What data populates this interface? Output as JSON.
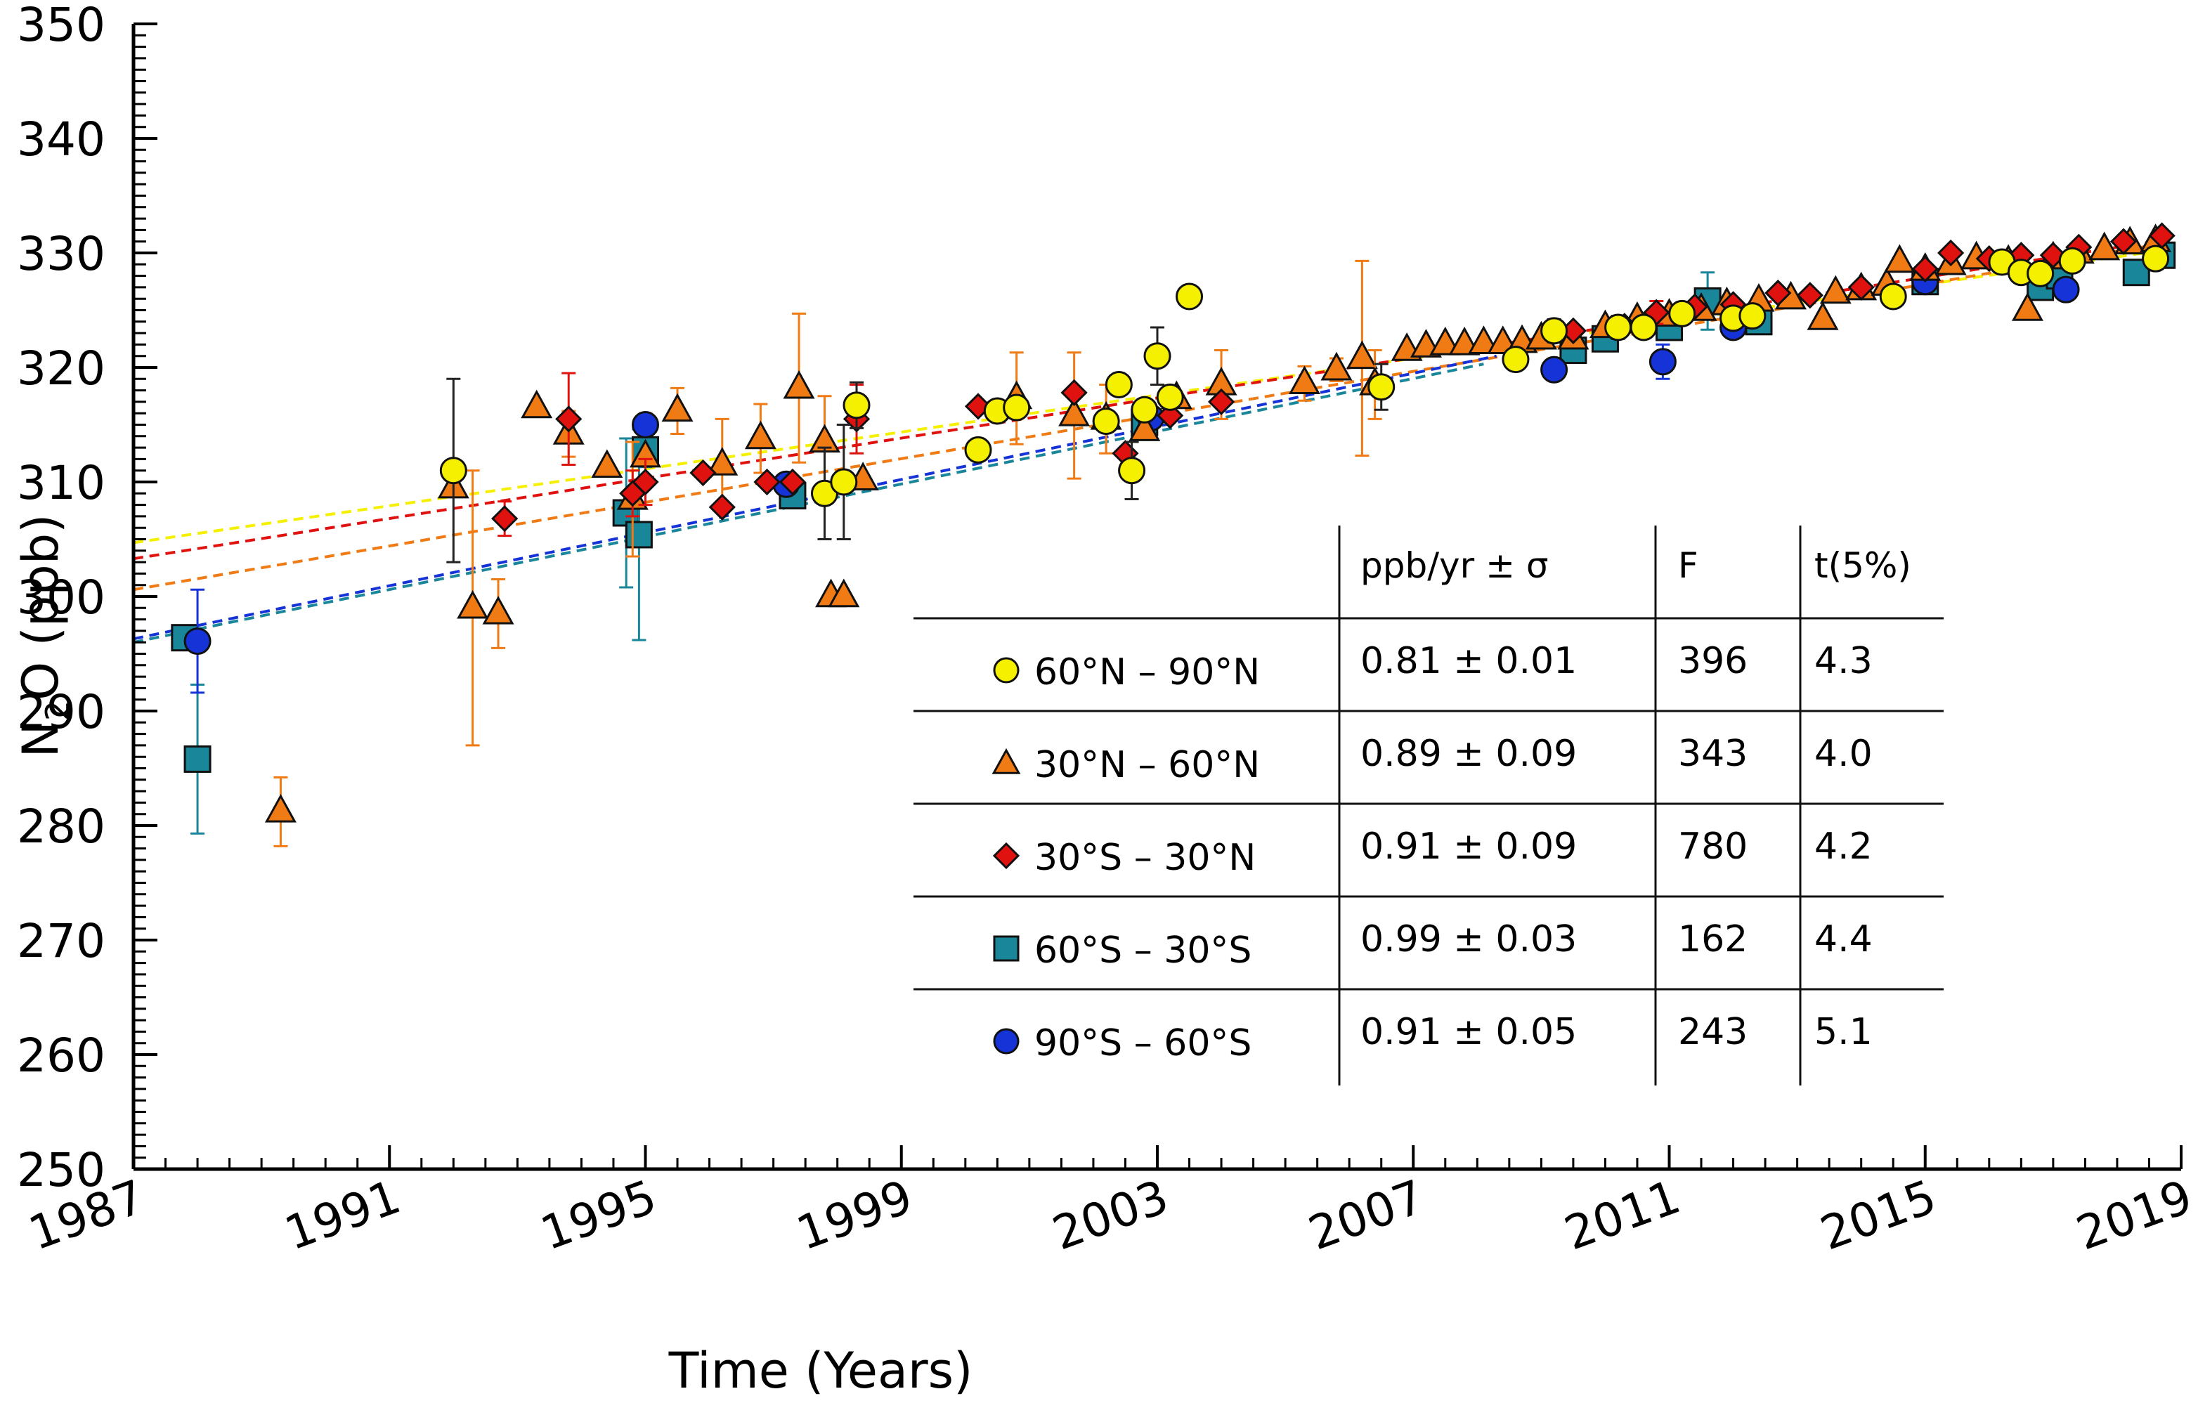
{
  "chart_data": {
    "type": "scatter",
    "xlabel": "Time (Years)",
    "ylabel_main": "N",
    "ylabel_sub": "2",
    "ylabel_rest": "O (ppb)",
    "xlim": [
      1987,
      2019
    ],
    "ylim": [
      250,
      350
    ],
    "x_ticks": [
      "1987",
      "1991",
      "1995",
      "1999",
      "2003",
      "2007",
      "2011",
      "2015",
      "2019"
    ],
    "y_ticks": [
      "250",
      "260",
      "270",
      "280",
      "290",
      "300",
      "310",
      "320",
      "330",
      "340",
      "350"
    ],
    "colors": {
      "yellow": "#f5f000",
      "orange": "#f07a14",
      "red": "#e0120f",
      "teal": "#19869a",
      "blue": "#1533d6"
    },
    "table": {
      "headers": [
        "ppb/yr  ± σ",
        "F",
        "t(5%)"
      ],
      "rows": [
        {
          "label": "60°N – 90°N",
          "rate": "0.81 ± 0.01",
          "F": "396",
          "t": "4.3",
          "marker": "circle",
          "color": "#f5f000"
        },
        {
          "label": "30°N – 60°N",
          "rate": "0.89 ± 0.09",
          "F": "343",
          "t": "4.0",
          "marker": "triangle",
          "color": "#f07a14"
        },
        {
          "label": "30°S – 30°N",
          "rate": "0.91 ± 0.09",
          "F": "780",
          "t": "4.2",
          "marker": "diamond",
          "color": "#e0120f"
        },
        {
          "label": "60°S – 30°S",
          "rate": "0.99 ± 0.03",
          "F": "162",
          "t": "4.4",
          "marker": "square",
          "color": "#19869a"
        },
        {
          "label": "90°S – 60°S",
          "rate": "0.91 ± 0.05",
          "F": "243",
          "t": "5.1",
          "marker": "circle",
          "color": "#1533d6"
        }
      ]
    },
    "series": [
      {
        "name": "60°N – 90°N",
        "marker": "circle",
        "color": "#f5f000",
        "err_color": "#222222",
        "trend": [
          [
            1987,
            304.7
          ],
          [
            2018.8,
            330.3
          ]
        ],
        "points": [
          [
            1992,
            311,
            8
          ],
          [
            1997.8,
            309,
            4
          ],
          [
            1998.1,
            310,
            5
          ],
          [
            1998.3,
            316.7,
            2
          ],
          [
            2000.2,
            312.8,
            0
          ],
          [
            2000.5,
            316.2,
            0
          ],
          [
            2000.8,
            316.5,
            0
          ],
          [
            2002.2,
            315.3,
            0
          ],
          [
            2002.4,
            318.5,
            0
          ],
          [
            2002.6,
            311,
            2.5
          ],
          [
            2002.8,
            316.3,
            0
          ],
          [
            2003,
            321,
            2.5
          ],
          [
            2003.2,
            317.4,
            0
          ],
          [
            2003.5,
            326.2,
            0
          ],
          [
            2006.5,
            318.3,
            2
          ],
          [
            2008.6,
            320.7,
            0
          ],
          [
            2009.2,
            323.2,
            1
          ],
          [
            2010.2,
            323.5,
            1
          ],
          [
            2010.6,
            323.5,
            0
          ],
          [
            2011.2,
            324.7,
            0
          ],
          [
            2012,
            324.3,
            0
          ],
          [
            2012.3,
            324.5,
            0
          ],
          [
            2014.5,
            326.2,
            0
          ],
          [
            2016.2,
            329.2,
            0
          ],
          [
            2016.5,
            328.3,
            0
          ],
          [
            2016.8,
            328.2,
            0
          ],
          [
            2017.3,
            329.3,
            0
          ],
          [
            2018.6,
            329.5,
            0
          ]
        ]
      },
      {
        "name": "30°N – 60°N",
        "marker": "triangle",
        "color": "#f07a14",
        "err_color": "#f07a14",
        "trend": [
          [
            1987,
            300.6
          ],
          [
            2018.8,
            330.9
          ]
        ],
        "points": [
          [
            1989.3,
            281.2,
            3
          ],
          [
            1992,
            309.5,
            0
          ],
          [
            1992.3,
            299,
            12
          ],
          [
            1992.7,
            298.5,
            3
          ],
          [
            1993.3,
            316.5,
            0
          ],
          [
            1993.8,
            314.2,
            2
          ],
          [
            1994.4,
            311.3,
            0
          ],
          [
            1994.8,
            308.5,
            5
          ],
          [
            1995,
            312.2,
            0
          ],
          [
            1995.5,
            316.2,
            2
          ],
          [
            1996.2,
            311.5,
            4
          ],
          [
            1996.8,
            313.8,
            3
          ],
          [
            1997.4,
            318.2,
            6.5
          ],
          [
            1997.8,
            313.5,
            4
          ],
          [
            1997.9,
            300,
            0
          ],
          [
            1998.1,
            300,
            0
          ],
          [
            1998.4,
            310.2,
            0
          ],
          [
            2000.8,
            317.3,
            4
          ],
          [
            2001.7,
            315.8,
            5.5
          ],
          [
            2002.2,
            315.5,
            3
          ],
          [
            2002.8,
            314.5,
            0
          ],
          [
            2003.3,
            317.3,
            0
          ],
          [
            2004,
            318.5,
            3
          ],
          [
            2005.3,
            318.6,
            1.5
          ],
          [
            2005.8,
            319.8,
            1
          ],
          [
            2006.2,
            320.8,
            8.5
          ],
          [
            2006.4,
            318.5,
            3
          ],
          [
            2006.9,
            321.5,
            0
          ],
          [
            2007.2,
            321.8,
            0
          ],
          [
            2007.5,
            322,
            0
          ],
          [
            2007.8,
            322,
            0
          ],
          [
            2008.1,
            322.1,
            0
          ],
          [
            2008.4,
            322.1,
            0
          ],
          [
            2008.7,
            322.2,
            0
          ],
          [
            2009,
            322.5,
            0
          ],
          [
            2009.5,
            322.5,
            0
          ],
          [
            2010,
            323.5,
            0
          ],
          [
            2010.5,
            324.2,
            0
          ],
          [
            2011,
            324.5,
            0
          ],
          [
            2011.5,
            325,
            0
          ],
          [
            2011.9,
            325.5,
            0
          ],
          [
            2012.4,
            325.8,
            0
          ],
          [
            2012.9,
            326,
            0
          ],
          [
            2013.4,
            324.2,
            0
          ],
          [
            2013.6,
            326.5,
            0
          ],
          [
            2014,
            326.8,
            0
          ],
          [
            2014.4,
            327.2,
            0
          ],
          [
            2014.6,
            329.2,
            0
          ],
          [
            2015,
            328.5,
            0
          ],
          [
            2015.4,
            329,
            0
          ],
          [
            2015.8,
            329.5,
            0
          ],
          [
            2016.3,
            329.2,
            0
          ],
          [
            2016.6,
            325,
            0
          ],
          [
            2017,
            329.5,
            0
          ],
          [
            2017.4,
            330,
            0
          ],
          [
            2017.8,
            330.3,
            0
          ],
          [
            2018.2,
            330.8,
            0
          ],
          [
            2018.6,
            331,
            0
          ]
        ]
      },
      {
        "name": "30°S – 30°N",
        "marker": "diamond",
        "color": "#e0120f",
        "err_color": "#e0120f",
        "trend": [
          [
            1987,
            303.3
          ],
          [
            2018.8,
            331.2
          ]
        ],
        "points": [
          [
            1992.8,
            306.8,
            1.5
          ],
          [
            1993.8,
            315.5,
            4
          ],
          [
            1994.8,
            309,
            2
          ],
          [
            1995,
            310,
            2
          ],
          [
            1995.9,
            310.8,
            0
          ],
          [
            1996.2,
            307.8,
            0
          ],
          [
            1996.9,
            310,
            0
          ],
          [
            1997.3,
            310,
            0
          ],
          [
            1998.3,
            315.5,
            3
          ],
          [
            2000.2,
            316.6,
            0
          ],
          [
            2001.7,
            317.8,
            0
          ],
          [
            2002.5,
            312.5,
            0
          ],
          [
            2003.2,
            315.8,
            0
          ],
          [
            2004,
            317,
            0
          ],
          [
            2009.5,
            323.2,
            0
          ],
          [
            2010.3,
            323.6,
            0
          ],
          [
            2010.8,
            324.8,
            1
          ],
          [
            2011.4,
            325.3,
            0
          ],
          [
            2012,
            325.5,
            0
          ],
          [
            2012.7,
            326.5,
            0
          ],
          [
            2013.2,
            326.3,
            0
          ],
          [
            2014,
            327,
            0
          ],
          [
            2015,
            328.6,
            0
          ],
          [
            2015.4,
            330,
            0
          ],
          [
            2016,
            329.5,
            0
          ],
          [
            2016.5,
            329.8,
            0
          ],
          [
            2017,
            329.8,
            0
          ],
          [
            2017.4,
            330.5,
            0
          ],
          [
            2018.1,
            331,
            0
          ],
          [
            2018.7,
            331.5,
            0
          ]
        ]
      },
      {
        "name": "60°S – 30°S",
        "marker": "square",
        "color": "#19869a",
        "err_color": "#19869a",
        "trend": [
          [
            1987,
            296
          ],
          [
            2008.1,
            320.3
          ]
        ],
        "points": [
          [
            1987.8,
            296.4,
            0
          ],
          [
            1988,
            285.8,
            6.5
          ],
          [
            1994.7,
            307.3,
            6.5
          ],
          [
            1994.9,
            305.4,
            9.2
          ],
          [
            1995,
            312.8,
            1.5
          ],
          [
            1997.3,
            308.8,
            0
          ],
          [
            2002.8,
            315.2,
            0
          ],
          [
            2009.5,
            321.5,
            0
          ],
          [
            2010,
            322.5,
            0
          ],
          [
            2011,
            323.5,
            0
          ],
          [
            2011.6,
            325.8,
            2.5
          ],
          [
            2012.4,
            324,
            0
          ],
          [
            2015,
            327.5,
            0
          ],
          [
            2016.8,
            327,
            0
          ],
          [
            2017.1,
            328,
            0
          ],
          [
            2018.3,
            328.3,
            0
          ],
          [
            2018.7,
            329.8,
            0
          ]
        ]
      },
      {
        "name": "90°S – 60°S",
        "marker": "circle",
        "color": "#1533d6",
        "err_color": "#1533d6",
        "trend": [
          [
            1987,
            296.3
          ],
          [
            2008.3,
            321
          ]
        ],
        "points": [
          [
            1988,
            296.1,
            4.5
          ],
          [
            1995,
            315,
            0
          ],
          [
            1997.2,
            309.8,
            0
          ],
          [
            2002.9,
            315.6,
            0
          ],
          [
            2009.2,
            319.8,
            0
          ],
          [
            2010.9,
            320.5,
            1.5
          ],
          [
            2012,
            323.5,
            0
          ],
          [
            2015,
            327.5,
            0
          ],
          [
            2017.2,
            326.8,
            0
          ]
        ]
      }
    ]
  }
}
